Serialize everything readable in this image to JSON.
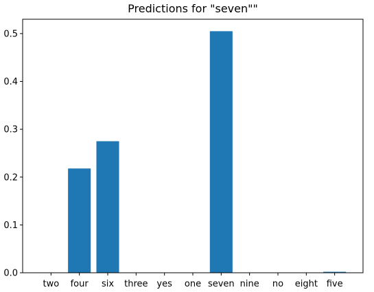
{
  "chart_data": {
    "type": "bar",
    "title": "Predictions for \"seven\"\"",
    "xlabel": "",
    "ylabel": "",
    "categories": [
      "two",
      "four",
      "six",
      "three",
      "yes",
      "one",
      "seven",
      "nine",
      "no",
      "eight",
      "five"
    ],
    "values": [
      0.0,
      0.218,
      0.275,
      0.0,
      0.0,
      0.0,
      0.505,
      0.0,
      0.0,
      0.0,
      0.002
    ],
    "ylim": [
      0,
      0.53
    ],
    "yticks": [
      0.0,
      0.1,
      0.2,
      0.3,
      0.4,
      0.5
    ],
    "ytick_labels": [
      "0.0",
      "0.1",
      "0.2",
      "0.3",
      "0.4",
      "0.5"
    ],
    "grid": false,
    "bar_color": "#1f77b4"
  }
}
